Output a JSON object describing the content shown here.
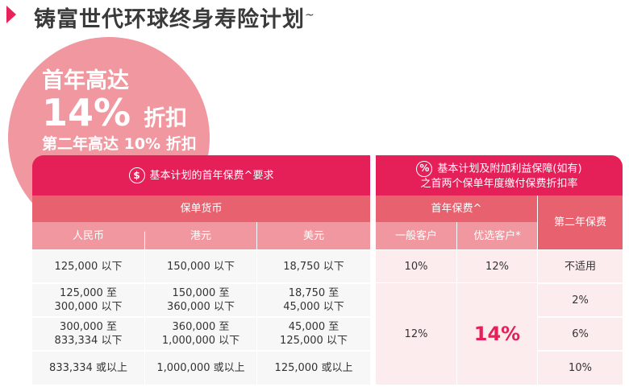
{
  "title": "铸富世代环球终身寿险计划",
  "title_mark": "~",
  "promo": {
    "line1": "首年高达",
    "pct": "14%",
    "pct_suffix": "折扣",
    "line3": "第二年高达 10% 折扣"
  },
  "left_table": {
    "icon": "dollar-icon",
    "header": "基本计划的首年保费^要求",
    "group": "保单货币",
    "columns": [
      "人民币",
      "港元",
      "美元"
    ],
    "rows": [
      [
        "125,000 以下",
        "150,000 以下",
        "18,750 以下"
      ],
      [
        "125,000 至\n300,000 以下",
        "150,000 至\n360,000 以下",
        "18,750 至\n45,000 以下"
      ],
      [
        "300,000 至\n833,334 以下",
        "360,000 至\n1,000,000 以下",
        "45,000 至\n125,000 以下"
      ],
      [
        "833,334 或以上",
        "1,000,000 或以上",
        "125,000 或以上"
      ]
    ]
  },
  "right_table": {
    "icon": "percent-icon",
    "header_line1": "基本计划及附加利益保障(如有)",
    "header_line2": "之首两个保单年度缴付保费折扣率",
    "first_year": "首年保费^",
    "second_year": "第二年保费",
    "columns": [
      "一般客户",
      "优选客户*"
    ],
    "general": [
      "10%",
      "12%"
    ],
    "preferred": [
      "12%",
      "14%"
    ],
    "second": [
      "不适用",
      "2%",
      "6%",
      "10%"
    ]
  },
  "colors": {
    "accent": "#e51f58",
    "sub": "#e8616f",
    "light": "#f0979f"
  }
}
